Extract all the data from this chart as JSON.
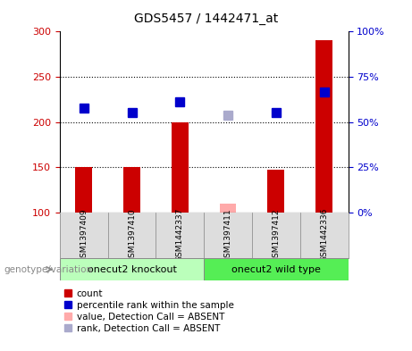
{
  "title": "GDS5457 / 1442471_at",
  "samples": [
    "GSM1397409",
    "GSM1397410",
    "GSM1442337",
    "GSM1397411",
    "GSM1397412",
    "GSM1442336"
  ],
  "bar_values": [
    150,
    150,
    200,
    110,
    147,
    290
  ],
  "bar_absent": [
    false,
    false,
    false,
    true,
    false,
    false
  ],
  "rank_values": [
    215,
    210,
    222,
    207,
    210,
    233
  ],
  "rank_absent": [
    false,
    false,
    false,
    true,
    false,
    false
  ],
  "bar_color_normal": "#cc0000",
  "bar_color_absent": "#ffaaaa",
  "rank_color_normal": "#0000cc",
  "rank_color_absent": "#aaaacc",
  "group1_label": "onecut2 knockout",
  "group2_label": "onecut2 wild type",
  "group1_color": "#bbffbb",
  "group2_color": "#55ee55",
  "genotype_label": "genotype/variation",
  "ylim_left": [
    100,
    300
  ],
  "yticks_left": [
    100,
    150,
    200,
    250,
    300
  ],
  "yticks_right_labels": [
    "0%",
    "25%",
    "50%",
    "75%",
    "100%"
  ],
  "yticks_right_values": [
    100,
    150,
    200,
    250,
    300
  ],
  "legend_items": [
    {
      "label": "count",
      "color": "#cc0000"
    },
    {
      "label": "percentile rank within the sample",
      "color": "#0000cc"
    },
    {
      "label": "value, Detection Call = ABSENT",
      "color": "#ffaaaa"
    },
    {
      "label": "rank, Detection Call = ABSENT",
      "color": "#aaaacc"
    }
  ],
  "bar_width": 0.35,
  "rank_marker_size": 7,
  "background_color": "#ffffff",
  "plot_bg_color": "#ffffff",
  "sample_bg_color": "#dddddd",
  "grid_color": "#000000",
  "title_fontsize": 10,
  "tick_fontsize": 8,
  "label_fontsize": 7.5,
  "legend_fontsize": 7.5
}
